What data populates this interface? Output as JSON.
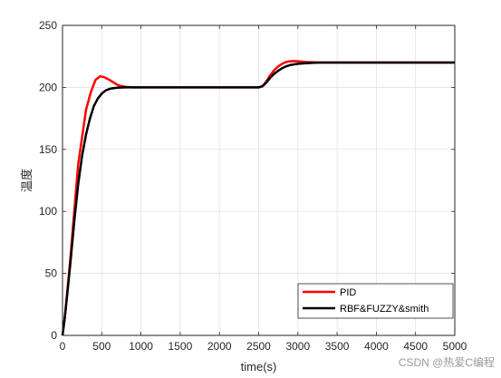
{
  "chart_data": {
    "type": "line",
    "title": "",
    "xlabel": "time(s)",
    "ylabel": "温度",
    "xlim": [
      0,
      5000
    ],
    "ylim": [
      0,
      250
    ],
    "xticks": [
      0,
      500,
      1000,
      1500,
      2000,
      2500,
      3000,
      3500,
      4000,
      4500,
      5000
    ],
    "yticks": [
      0,
      50,
      100,
      150,
      200,
      250
    ],
    "grid": true,
    "legend_position": "bottom-right",
    "series": [
      {
        "name": "PID",
        "color": "#ff0000",
        "x": [
          0,
          30,
          60,
          100,
          150,
          200,
          250,
          300,
          360,
          420,
          480,
          540,
          600,
          650,
          700,
          750,
          800,
          850,
          900,
          950,
          1000,
          1100,
          1200,
          1300,
          1500,
          2000,
          2500,
          2550,
          2600,
          2650,
          2700,
          2750,
          2800,
          2850,
          2900,
          2950,
          3000,
          3050,
          3100,
          3200,
          3300,
          3500,
          4000,
          4500,
          5000
        ],
        "y": [
          0,
          15,
          35,
          62,
          100,
          138,
          160,
          182,
          196,
          206,
          209,
          208,
          206,
          204,
          202,
          201,
          200.5,
          200.2,
          200,
          200,
          200,
          200,
          200,
          200,
          200,
          200,
          200,
          201,
          205,
          210,
          214,
          217,
          219,
          220.5,
          221,
          221.2,
          221,
          220.8,
          220.5,
          220.2,
          220,
          220,
          220,
          220,
          220
        ]
      },
      {
        "name": "RBF&FUZZY&smith",
        "color": "#000000",
        "x": [
          0,
          30,
          60,
          100,
          150,
          200,
          250,
          300,
          350,
          400,
          450,
          500,
          550,
          600,
          650,
          700,
          800,
          900,
          1000,
          1500,
          2000,
          2500,
          2550,
          2600,
          2650,
          2700,
          2750,
          2800,
          2850,
          2900,
          3000,
          3100,
          3200,
          3300,
          3500,
          4000,
          4500,
          5000
        ],
        "y": [
          0,
          15,
          33,
          58,
          92,
          122,
          145,
          162,
          175,
          185,
          191,
          195,
          197.5,
          198.8,
          199.4,
          199.7,
          200,
          200,
          200,
          200,
          200,
          200,
          201,
          204,
          208,
          211,
          213.5,
          215.5,
          217,
          218,
          219,
          219.5,
          219.8,
          220,
          220,
          220,
          220,
          220
        ]
      }
    ]
  },
  "colors": {
    "axis": "#262626",
    "grid": "#dfdfdf",
    "background": "#ffffff"
  },
  "watermark": "CSDN @热爱C编程"
}
